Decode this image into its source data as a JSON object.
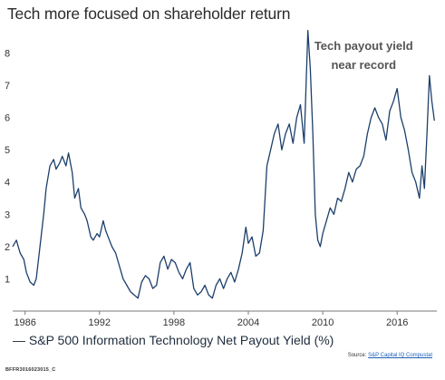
{
  "title": "Tech more focused on shareholder return",
  "legend": "— S&P 500 Information Technology Net Payout Yield (%)",
  "source_label": "Source:",
  "source_name": "S&P Capital IQ Compustat",
  "footer_code": "BFFR3016023015_C",
  "chart_data": {
    "type": "line",
    "title": "Tech more focused on shareholder return",
    "xlabel": "",
    "ylabel": "",
    "xlim": [
      1985.0,
      2019.2
    ],
    "ylim": [
      0,
      8.8
    ],
    "x_ticks": [
      1986,
      1992,
      1998,
      2004,
      2010,
      2016
    ],
    "y_ticks": [
      1,
      2,
      3,
      4,
      5,
      6,
      7,
      8
    ],
    "grid": false,
    "legend_position": "bottom-left",
    "annotations": [
      {
        "text": "Tech payout yield",
        "x": 2013.3,
        "y": 8.1
      },
      {
        "text": "near record",
        "x": 2013.3,
        "y": 7.5
      }
    ],
    "series": [
      {
        "name": "S&P 500 Information Technology Net Payout Yield (%)",
        "color": "#1c3f6b",
        "x": [
          1985.0,
          1985.3,
          1985.6,
          1985.9,
          1986.1,
          1986.4,
          1986.7,
          1986.9,
          1987.2,
          1987.5,
          1987.7,
          1988.0,
          1988.3,
          1988.5,
          1988.8,
          1989.0,
          1989.3,
          1989.5,
          1989.8,
          1990.0,
          1990.3,
          1990.5,
          1990.8,
          1991.0,
          1991.3,
          1991.5,
          1991.8,
          1992.0,
          1992.3,
          1992.5,
          1992.8,
          1993.0,
          1993.3,
          1993.6,
          1993.9,
          1994.2,
          1994.5,
          1994.8,
          1995.1,
          1995.4,
          1995.7,
          1996.0,
          1996.3,
          1996.6,
          1996.9,
          1997.2,
          1997.5,
          1997.8,
          1998.1,
          1998.4,
          1998.7,
          1999.0,
          1999.3,
          1999.6,
          1999.9,
          2000.2,
          2000.5,
          2000.8,
          2001.1,
          2001.4,
          2001.7,
          2002.0,
          2002.3,
          2002.6,
          2002.9,
          2003.2,
          2003.5,
          2003.8,
          2004.0,
          2004.3,
          2004.6,
          2004.9,
          2005.2,
          2005.5,
          2005.8,
          2006.1,
          2006.4,
          2006.7,
          2007.0,
          2007.3,
          2007.6,
          2007.9,
          2008.2,
          2008.5,
          2008.8,
          2009.0,
          2009.2,
          2009.4,
          2009.6,
          2009.8,
          2010.0,
          2010.3,
          2010.6,
          2010.9,
          2011.2,
          2011.5,
          2011.8,
          2012.1,
          2012.4,
          2012.7,
          2013.0,
          2013.3,
          2013.6,
          2013.9,
          2014.2,
          2014.5,
          2014.8,
          2015.1,
          2015.4,
          2015.7,
          2016.0,
          2016.3,
          2016.6,
          2016.9,
          2017.2,
          2017.5,
          2017.8,
          2018.0,
          2018.2,
          2018.4,
          2018.6,
          2018.8,
          2019.0
        ],
        "y": [
          2.0,
          2.2,
          1.8,
          1.6,
          1.2,
          0.9,
          0.8,
          1.0,
          2.0,
          3.0,
          3.8,
          4.5,
          4.7,
          4.4,
          4.6,
          4.8,
          4.5,
          4.9,
          4.3,
          3.5,
          3.8,
          3.2,
          3.0,
          2.8,
          2.3,
          2.2,
          2.4,
          2.3,
          2.8,
          2.5,
          2.2,
          2.0,
          1.8,
          1.4,
          1.0,
          0.8,
          0.6,
          0.5,
          0.4,
          0.9,
          1.1,
          1.0,
          0.7,
          0.8,
          1.5,
          1.7,
          1.3,
          1.6,
          1.5,
          1.2,
          1.0,
          1.3,
          1.5,
          0.7,
          0.5,
          0.6,
          0.8,
          0.5,
          0.4,
          0.8,
          1.0,
          0.7,
          1.0,
          1.2,
          0.9,
          1.3,
          1.8,
          2.6,
          2.1,
          2.3,
          1.7,
          1.8,
          2.5,
          4.5,
          5.0,
          5.5,
          5.8,
          5.0,
          5.5,
          5.8,
          5.2,
          6.0,
          6.4,
          5.2,
          8.7,
          7.5,
          5.5,
          3.0,
          2.2,
          2.0,
          2.4,
          2.8,
          3.2,
          3.0,
          3.5,
          3.4,
          3.8,
          4.3,
          4.0,
          4.4,
          4.5,
          4.8,
          5.5,
          6.0,
          6.3,
          6.0,
          5.8,
          5.3,
          6.2,
          6.5,
          6.9,
          6.0,
          5.6,
          5.0,
          4.3,
          4.0,
          3.5,
          4.5,
          3.8,
          5.5,
          7.3,
          6.5,
          5.9
        ]
      }
    ]
  }
}
